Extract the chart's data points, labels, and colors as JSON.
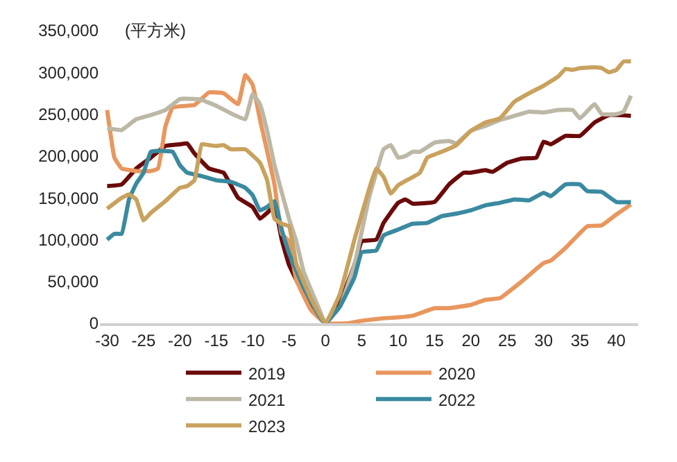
{
  "chart_data": {
    "type": "line",
    "ylabel": "(平方米)",
    "xlim": [
      -31,
      43
    ],
    "ylim": [
      0,
      350000
    ],
    "xticks": [
      -30,
      -25,
      -20,
      -15,
      -10,
      -5,
      0,
      5,
      10,
      15,
      20,
      25,
      30,
      35,
      40
    ],
    "yticks": [
      {
        "value": 0,
        "label": "0"
      },
      {
        "value": 50000,
        "label": "50,000"
      },
      {
        "value": 100000,
        "label": "100,000"
      },
      {
        "value": 150000,
        "label": "150,000"
      },
      {
        "value": 200000,
        "label": "200,000"
      },
      {
        "value": 250000,
        "label": "250,000"
      },
      {
        "value": 300000,
        "label": "300,000"
      },
      {
        "value": 350000,
        "label": "350,000"
      }
    ],
    "legend": "bottom",
    "marker": "none",
    "line_style": "solid",
    "series": [
      {
        "name": "2019",
        "color": "#6b0a0a",
        "x": [
          -30,
          -28,
          -26,
          -24,
          -22,
          -20,
          -19,
          -18,
          -16,
          -14,
          -12,
          -10,
          -9,
          -8,
          -7,
          -6,
          -5,
          -3,
          -1,
          0,
          2,
          4,
          5,
          7,
          8,
          10,
          11,
          12,
          15,
          17,
          19,
          20,
          22,
          23,
          25,
          27,
          29,
          30,
          31,
          33,
          35,
          37,
          39,
          42
        ],
        "values": [
          164000,
          166000,
          185000,
          198000,
          212000,
          214000,
          215000,
          203000,
          185000,
          180000,
          150000,
          139000,
          125000,
          132000,
          140000,
          100000,
          70000,
          35000,
          10000,
          0,
          25000,
          70000,
          98000,
          100000,
          120000,
          144000,
          148000,
          143000,
          145000,
          166000,
          180000,
          180000,
          183000,
          181000,
          192000,
          197000,
          198000,
          217000,
          214000,
          224000,
          224000,
          240000,
          249000,
          248000
        ]
      },
      {
        "name": "2020",
        "color": "#e8975e",
        "x": [
          -30,
          -29,
          -28,
          -26,
          -24,
          -23,
          -22,
          -21,
          -18,
          -16,
          -14,
          -12,
          -11,
          -10,
          -9,
          -7,
          -6,
          -5,
          -4,
          -2,
          0,
          3,
          5,
          8,
          10,
          12,
          15,
          17,
          20,
          22,
          24,
          27,
          30,
          31,
          33,
          36,
          38,
          40,
          42
        ],
        "values": [
          255000,
          198000,
          185000,
          182000,
          182000,
          185000,
          235000,
          258000,
          261000,
          276000,
          275000,
          262000,
          297000,
          285000,
          244000,
          166000,
          107000,
          98000,
          52000,
          16000,
          0,
          0,
          3000,
          6000,
          7000,
          9000,
          18000,
          18000,
          22000,
          28000,
          30000,
          50000,
          72000,
          75000,
          90000,
          116000,
          117000,
          130000,
          142000
        ]
      },
      {
        "name": "2021",
        "color": "#bdb8a6",
        "x": [
          -30,
          -28,
          -26,
          -24,
          -22,
          -20,
          -18,
          -17,
          -15,
          -13,
          -11,
          -10,
          -9,
          -8,
          -7,
          -5,
          -4,
          -3,
          -1,
          0,
          2,
          4,
          6,
          7,
          8,
          9,
          10,
          11,
          12,
          13,
          15,
          17,
          18,
          20,
          22,
          24,
          26,
          28,
          30,
          32,
          34,
          35,
          37,
          38,
          40,
          41,
          42
        ],
        "values": [
          233000,
          231000,
          244000,
          249000,
          255000,
          268000,
          268000,
          267000,
          260000,
          251000,
          244000,
          274000,
          262000,
          230000,
          189000,
          125000,
          98000,
          62000,
          20000,
          0,
          20000,
          70000,
          150000,
          180000,
          208000,
          213000,
          198000,
          200000,
          205000,
          205000,
          216000,
          218000,
          215000,
          230000,
          236000,
          243000,
          248000,
          253000,
          252000,
          255000,
          255000,
          245000,
          262000,
          250000,
          250000,
          253000,
          272000
        ]
      },
      {
        "name": "2022",
        "color": "#3a8aa0",
        "x": [
          -30,
          -29,
          -28,
          -27,
          -26,
          -25,
          -24,
          -23,
          -21,
          -20,
          -19,
          -17,
          -15,
          -13,
          -11,
          -10,
          -9,
          -8,
          -7,
          -6,
          -5,
          -3,
          -1,
          0,
          2,
          4,
          5,
          7,
          8,
          10,
          12,
          14,
          16,
          18,
          20,
          22,
          24,
          26,
          28,
          30,
          31,
          33,
          35,
          36,
          38,
          40,
          42
        ],
        "values": [
          100000,
          107000,
          107000,
          148000,
          167000,
          180000,
          205000,
          206000,
          205000,
          189000,
          180000,
          176000,
          171000,
          169000,
          162000,
          153000,
          135000,
          139000,
          146000,
          112000,
          84000,
          43000,
          11000,
          0,
          20000,
          55000,
          85000,
          87000,
          105000,
          112000,
          119000,
          120000,
          128000,
          131000,
          135000,
          141000,
          144000,
          148000,
          147000,
          156000,
          152000,
          166000,
          166000,
          158000,
          157000,
          145000,
          145000
        ]
      },
      {
        "name": "2023",
        "color": "#c8a25e",
        "x": [
          -30,
          -28,
          -27,
          -26,
          -25,
          -24,
          -22,
          -20,
          -19,
          -18,
          -17,
          -16,
          -15,
          -14,
          -13,
          -11,
          -9,
          -8,
          -7,
          -6,
          -5,
          -4,
          -2,
          0,
          2,
          4,
          6,
          7,
          8,
          9,
          10,
          11,
          13,
          14,
          16,
          18,
          20,
          22,
          24,
          26,
          28,
          30,
          32,
          33,
          34,
          35,
          37,
          38,
          39,
          40,
          41,
          42
        ],
        "values": [
          137000,
          150000,
          154000,
          148000,
          123000,
          132000,
          146000,
          162000,
          164000,
          171000,
          214000,
          213000,
          212000,
          213000,
          208000,
          208000,
          192000,
          171000,
          125000,
          119000,
          116000,
          71000,
          30000,
          0,
          35000,
          100000,
          160000,
          185000,
          175000,
          155000,
          165000,
          170000,
          180000,
          198000,
          205000,
          213000,
          230000,
          240000,
          245000,
          265000,
          275000,
          284000,
          295000,
          304000,
          303000,
          305000,
          306000,
          305000,
          300000,
          303000,
          313000,
          313000
        ]
      }
    ]
  }
}
